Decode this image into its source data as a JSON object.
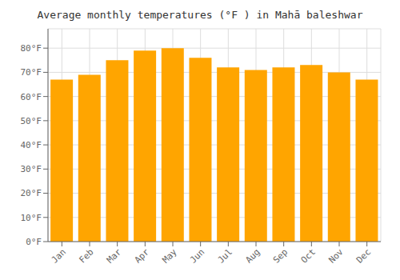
{
  "chart_data": {
    "type": "bar",
    "title": "Average monthly temperatures (°F ) in Mahā baleshwar",
    "categories": [
      "Jan",
      "Feb",
      "Mar",
      "Apr",
      "May",
      "Jun",
      "Jul",
      "Aug",
      "Sep",
      "Oct",
      "Nov",
      "Dec"
    ],
    "values": [
      67,
      69,
      75,
      79,
      80,
      76,
      72,
      71,
      72,
      73,
      70,
      67
    ],
    "color": "#FFA500",
    "ylim": [
      0,
      88
    ],
    "yticks": [
      {
        "value": 0,
        "label": "0°F"
      },
      {
        "value": 10,
        "label": "10°F"
      },
      {
        "value": 20,
        "label": "20°F"
      },
      {
        "value": 30,
        "label": "30°F"
      },
      {
        "value": 40,
        "label": "40°F"
      },
      {
        "value": 50,
        "label": "50°F"
      },
      {
        "value": 60,
        "label": "60°F"
      },
      {
        "value": 70,
        "label": "70°F"
      },
      {
        "value": 80,
        "label": "80°F"
      }
    ],
    "grid": true
  }
}
